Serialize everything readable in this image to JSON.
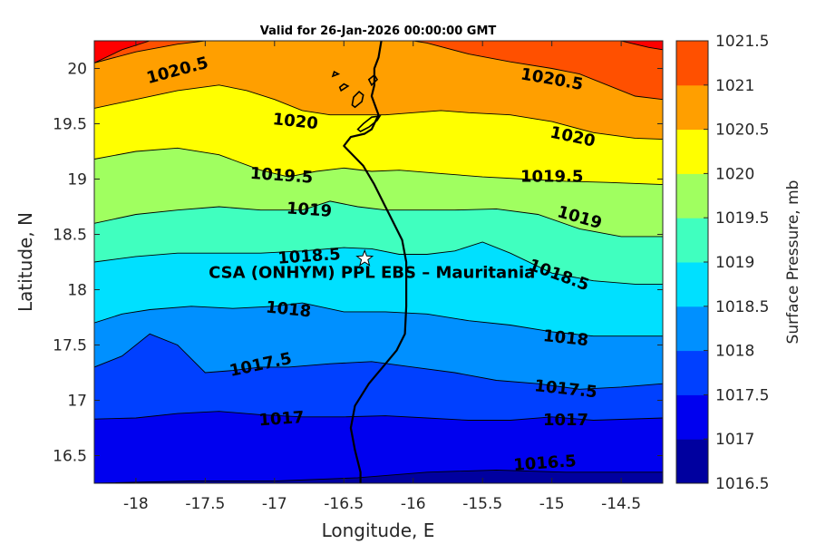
{
  "chart_data": {
    "type": "filled-contour",
    "title": "Valid for 26-Jan-2026 00:00:00 GMT",
    "xlabel": "Longitude, E",
    "ylabel": "Latitude, N",
    "colorbar_label": "Surface Pressure, mb",
    "xlim": [
      -18.3,
      -14.2
    ],
    "ylim": [
      16.25,
      20.25
    ],
    "xticks": [
      -18,
      -17.5,
      -17,
      -16.5,
      -16,
      -15.5,
      -15,
      -14.5
    ],
    "xtick_labels": [
      "-18",
      "-17.5",
      "-17",
      "-16.5",
      "-16",
      "-15.5",
      "-15",
      "-14.5"
    ],
    "yticks": [
      16.5,
      17,
      17.5,
      18,
      18.5,
      19,
      19.5,
      20
    ],
    "ytick_labels": [
      "16.5",
      "17",
      "17.5",
      "18",
      "18.5",
      "19",
      "19.5",
      "20"
    ],
    "levels": [
      1016.5,
      1017,
      1017.5,
      1018,
      1018.5,
      1019,
      1019.5,
      1020,
      1020.5,
      1021,
      1021.5
    ],
    "level_labels": [
      "1016.5",
      "1017",
      "1017.5",
      "1018",
      "1018.5",
      "1019",
      "1019.5",
      "1020",
      "1020.5",
      "1021",
      "1021.5"
    ],
    "band_colors": [
      "#00009f",
      "#0000ef",
      "#0040ff",
      "#0090ff",
      "#00e0ff",
      "#40ffbf",
      "#a0ff60",
      "#ffff00",
      "#ff9f00",
      "#ff5000",
      "#ff0000"
    ],
    "contours": [
      {
        "level": 1016.5,
        "points": [
          [
            -18.3,
            16.25
          ],
          [
            -17.6,
            16.27
          ],
          [
            -17.0,
            16.27
          ],
          [
            -16.4,
            16.3
          ],
          [
            -15.9,
            16.35
          ],
          [
            -15.4,
            16.37
          ],
          [
            -14.9,
            16.35
          ],
          [
            -14.2,
            16.35
          ]
        ]
      },
      {
        "level": 1017,
        "points": [
          [
            -18.3,
            16.83
          ],
          [
            -18.0,
            16.84
          ],
          [
            -17.7,
            16.88
          ],
          [
            -17.4,
            16.9
          ],
          [
            -17.1,
            16.87
          ],
          [
            -16.8,
            16.85
          ],
          [
            -16.5,
            16.85
          ],
          [
            -16.2,
            16.86
          ],
          [
            -15.9,
            16.84
          ],
          [
            -15.6,
            16.82
          ],
          [
            -15.3,
            16.82
          ],
          [
            -15.0,
            16.85
          ],
          [
            -14.7,
            16.82
          ],
          [
            -14.2,
            16.84
          ]
        ]
      },
      {
        "level": 1017.5,
        "points": [
          [
            -18.3,
            17.3
          ],
          [
            -18.1,
            17.4
          ],
          [
            -17.9,
            17.6
          ],
          [
            -17.7,
            17.5
          ],
          [
            -17.5,
            17.25
          ],
          [
            -17.3,
            17.27
          ],
          [
            -17.1,
            17.3
          ],
          [
            -16.9,
            17.3
          ],
          [
            -16.6,
            17.33
          ],
          [
            -16.3,
            17.35
          ],
          [
            -16.0,
            17.3
          ],
          [
            -15.7,
            17.25
          ],
          [
            -15.4,
            17.18
          ],
          [
            -15.1,
            17.15
          ],
          [
            -14.8,
            17.1
          ],
          [
            -14.5,
            17.12
          ],
          [
            -14.2,
            17.15
          ]
        ]
      },
      {
        "level": 1018,
        "points": [
          [
            -18.3,
            17.7
          ],
          [
            -18.1,
            17.78
          ],
          [
            -17.9,
            17.82
          ],
          [
            -17.6,
            17.85
          ],
          [
            -17.3,
            17.83
          ],
          [
            -17.0,
            17.85
          ],
          [
            -16.8,
            17.88
          ],
          [
            -16.5,
            17.8
          ],
          [
            -16.2,
            17.8
          ],
          [
            -15.9,
            17.78
          ],
          [
            -15.6,
            17.72
          ],
          [
            -15.3,
            17.68
          ],
          [
            -15.0,
            17.62
          ],
          [
            -14.7,
            17.58
          ],
          [
            -14.2,
            17.58
          ]
        ]
      },
      {
        "level": 1018.5,
        "points": [
          [
            -18.3,
            18.25
          ],
          [
            -18.0,
            18.3
          ],
          [
            -17.7,
            18.33
          ],
          [
            -17.4,
            18.33
          ],
          [
            -17.1,
            18.33
          ],
          [
            -16.8,
            18.35
          ],
          [
            -16.5,
            18.38
          ],
          [
            -16.3,
            18.37
          ],
          [
            -16.1,
            18.32
          ],
          [
            -15.9,
            18.32
          ],
          [
            -15.7,
            18.35
          ],
          [
            -15.5,
            18.43
          ],
          [
            -15.3,
            18.33
          ],
          [
            -15.0,
            18.15
          ],
          [
            -14.7,
            18.08
          ],
          [
            -14.4,
            18.05
          ],
          [
            -14.2,
            18.05
          ]
        ]
      },
      {
        "level": 1019,
        "points": [
          [
            -18.3,
            18.6
          ],
          [
            -18.0,
            18.68
          ],
          [
            -17.7,
            18.72
          ],
          [
            -17.4,
            18.75
          ],
          [
            -17.1,
            18.72
          ],
          [
            -16.8,
            18.72
          ],
          [
            -16.6,
            18.8
          ],
          [
            -16.4,
            18.75
          ],
          [
            -16.2,
            18.72
          ],
          [
            -16.0,
            18.72
          ],
          [
            -15.7,
            18.72
          ],
          [
            -15.4,
            18.73
          ],
          [
            -15.1,
            18.68
          ],
          [
            -14.8,
            18.55
          ],
          [
            -14.5,
            18.48
          ],
          [
            -14.2,
            18.48
          ]
        ]
      },
      {
        "level": 1019.5,
        "points": [
          [
            -18.3,
            19.18
          ],
          [
            -18.0,
            19.25
          ],
          [
            -17.7,
            19.28
          ],
          [
            -17.4,
            19.22
          ],
          [
            -17.1,
            19.08
          ],
          [
            -16.9,
            19.02
          ],
          [
            -16.7,
            19.07
          ],
          [
            -16.5,
            19.1
          ],
          [
            -16.3,
            19.07
          ],
          [
            -16.1,
            19.08
          ],
          [
            -15.8,
            19.05
          ],
          [
            -15.5,
            19.02
          ],
          [
            -15.2,
            19.0
          ],
          [
            -14.9,
            18.98
          ],
          [
            -14.6,
            18.97
          ],
          [
            -14.2,
            18.95
          ]
        ]
      },
      {
        "level": 1020,
        "points": [
          [
            -18.3,
            19.64
          ],
          [
            -18.0,
            19.72
          ],
          [
            -17.7,
            19.8
          ],
          [
            -17.4,
            19.85
          ],
          [
            -17.2,
            19.8
          ],
          [
            -17.0,
            19.72
          ],
          [
            -16.8,
            19.62
          ],
          [
            -16.6,
            19.58
          ],
          [
            -16.4,
            19.58
          ],
          [
            -16.2,
            19.58
          ],
          [
            -16.0,
            19.6
          ],
          [
            -15.8,
            19.62
          ],
          [
            -15.6,
            19.6
          ],
          [
            -15.3,
            19.58
          ],
          [
            -15.0,
            19.52
          ],
          [
            -14.7,
            19.42
          ],
          [
            -14.4,
            19.37
          ],
          [
            -14.2,
            19.36
          ]
        ]
      },
      {
        "level": 1020.5,
        "points": [
          [
            -18.3,
            20.05
          ],
          [
            -18.0,
            20.15
          ],
          [
            -17.7,
            20.22
          ],
          [
            -17.5,
            20.25
          ]
        ]
      },
      {
        "level": 1020.5,
        "points": [
          [
            -16.0,
            20.25
          ],
          [
            -15.9,
            20.23
          ],
          [
            -15.6,
            20.13
          ],
          [
            -15.3,
            20.06
          ],
          [
            -15.0,
            20.0
          ],
          [
            -14.8,
            19.95
          ],
          [
            -14.6,
            19.85
          ],
          [
            -14.4,
            19.75
          ],
          [
            -14.2,
            19.72
          ]
        ]
      },
      {
        "level": 1021,
        "points": [
          [
            -18.3,
            20.05
          ],
          [
            -18.1,
            20.17
          ],
          [
            -17.9,
            20.25
          ]
        ]
      },
      {
        "level": 1021,
        "points": [
          [
            -14.5,
            20.25
          ],
          [
            -14.3,
            20.19
          ],
          [
            -14.2,
            20.17
          ]
        ]
      }
    ],
    "contour_labels": [
      {
        "text": "1020.5",
        "x": -17.7,
        "y": 19.98,
        "angle": -15
      },
      {
        "text": "1020.5",
        "x": -15.0,
        "y": 19.9,
        "angle": 10
      },
      {
        "text": "1020",
        "x": -16.85,
        "y": 19.52,
        "angle": 6
      },
      {
        "text": "1020",
        "x": -14.85,
        "y": 19.38,
        "angle": 12
      },
      {
        "text": "1019.5",
        "x": -16.95,
        "y": 19.03,
        "angle": 4
      },
      {
        "text": "1019.5",
        "x": -15.0,
        "y": 19.02,
        "angle": 0
      },
      {
        "text": "1019",
        "x": -16.75,
        "y": 18.72,
        "angle": 4
      },
      {
        "text": "1019",
        "x": -14.8,
        "y": 18.65,
        "angle": 16
      },
      {
        "text": "1018.5",
        "x": -16.75,
        "y": 18.3,
        "angle": -4
      },
      {
        "text": "1018.5",
        "x": -14.95,
        "y": 18.13,
        "angle": 20
      },
      {
        "text": "1018",
        "x": -16.9,
        "y": 17.82,
        "angle": 6
      },
      {
        "text": "1018",
        "x": -14.9,
        "y": 17.56,
        "angle": 6
      },
      {
        "text": "1017.5",
        "x": -17.1,
        "y": 17.32,
        "angle": -12
      },
      {
        "text": "1017.5",
        "x": -14.9,
        "y": 17.1,
        "angle": 6
      },
      {
        "text": "1017",
        "x": -16.95,
        "y": 16.83,
        "angle": -4
      },
      {
        "text": "1017",
        "x": -14.9,
        "y": 16.82,
        "angle": 0
      },
      {
        "text": "1016.5",
        "x": -15.05,
        "y": 16.43,
        "angle": -4
      }
    ],
    "coastline": [
      [
        -16.38,
        16.25
      ],
      [
        -16.38,
        16.35
      ],
      [
        -16.42,
        16.55
      ],
      [
        -16.45,
        16.75
      ],
      [
        -16.42,
        16.95
      ],
      [
        -16.32,
        17.15
      ],
      [
        -16.22,
        17.3
      ],
      [
        -16.12,
        17.45
      ],
      [
        -16.06,
        17.6
      ],
      [
        -16.05,
        17.85
      ],
      [
        -16.05,
        18.05
      ],
      [
        -16.05,
        18.25
      ],
      [
        -16.08,
        18.45
      ],
      [
        -16.14,
        18.6
      ],
      [
        -16.2,
        18.75
      ],
      [
        -16.28,
        18.95
      ],
      [
        -16.36,
        19.12
      ],
      [
        -16.5,
        19.3
      ],
      [
        -16.45,
        19.38
      ],
      [
        -16.35,
        19.41
      ],
      [
        -16.3,
        19.45
      ],
      [
        -16.25,
        19.58
      ],
      [
        -16.3,
        19.75
      ],
      [
        -16.28,
        19.85
      ],
      [
        -16.28,
        20.0
      ],
      [
        -16.25,
        20.1
      ],
      [
        -16.23,
        20.25
      ]
    ],
    "islands": [
      [
        [
          -16.38,
          19.43
        ],
        [
          -16.32,
          19.47
        ],
        [
          -16.26,
          19.53
        ],
        [
          -16.24,
          19.57
        ],
        [
          -16.3,
          19.56
        ],
        [
          -16.36,
          19.5
        ],
        [
          -16.4,
          19.45
        ],
        [
          -16.38,
          19.43
        ]
      ],
      [
        [
          -16.42,
          19.65
        ],
        [
          -16.37,
          19.7
        ],
        [
          -16.36,
          19.76
        ],
        [
          -16.39,
          19.79
        ],
        [
          -16.43,
          19.74
        ],
        [
          -16.44,
          19.67
        ],
        [
          -16.42,
          19.65
        ]
      ],
      [
        [
          -16.52,
          19.8
        ],
        [
          -16.47,
          19.84
        ],
        [
          -16.5,
          19.86
        ],
        [
          -16.53,
          19.83
        ],
        [
          -16.52,
          19.8
        ]
      ],
      [
        [
          -16.3,
          19.85
        ],
        [
          -16.26,
          19.9
        ],
        [
          -16.28,
          19.94
        ],
        [
          -16.32,
          19.9
        ],
        [
          -16.3,
          19.85
        ]
      ],
      [
        [
          -16.58,
          19.93
        ],
        [
          -16.54,
          19.95
        ],
        [
          -16.57,
          19.97
        ],
        [
          -16.58,
          19.93
        ]
      ]
    ],
    "station": {
      "name": "CSA (ONHYM) PPL EBS  – Mauritania",
      "lon": -16.35,
      "lat": 18.28
    }
  }
}
